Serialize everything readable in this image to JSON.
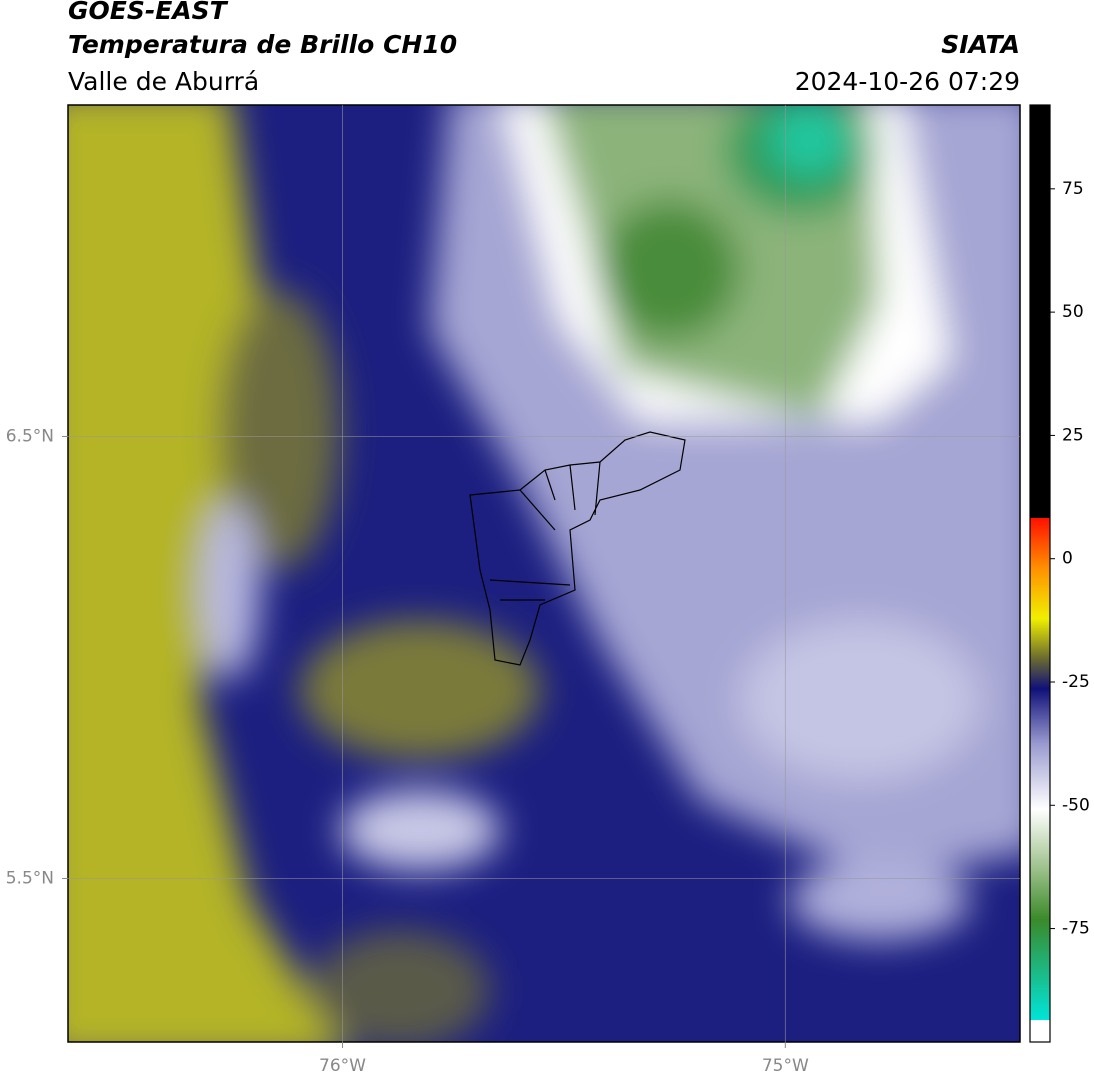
{
  "header": {
    "title": "GOES-EAST",
    "subtitle": "Temperatura de Brillo CH10",
    "region": "Valle de Aburrá",
    "source": "SIATA",
    "datetime": "2024-10-26 07:29"
  },
  "map": {
    "xlim": [
      -76.62,
      -74.47
    ],
    "ylim": [
      5.13,
      7.25
    ],
    "xticks": [
      {
        "value": -76,
        "label": "76°W"
      },
      {
        "value": -75,
        "label": "75°W"
      }
    ],
    "yticks": [
      {
        "value": 6.5,
        "label": "6.5°N"
      },
      {
        "value": 5.5,
        "label": "5.5°N"
      }
    ],
    "grid": true
  },
  "colorbar": {
    "lim": [
      -98,
      92
    ],
    "ticks": [
      75,
      50,
      25,
      0,
      -25,
      -50,
      -75
    ]
  }
}
